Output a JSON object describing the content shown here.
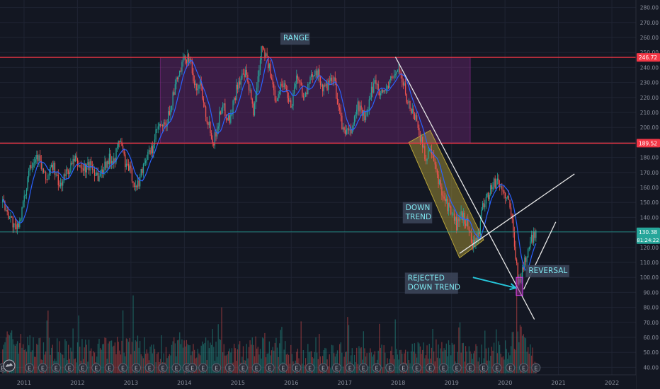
{
  "chart_data": {
    "type": "candlestick",
    "x_ticks": [
      "2011",
      "2012",
      "2013",
      "2014",
      "2015",
      "2016",
      "2017",
      "2018",
      "2019",
      "2020",
      "2021",
      "2022"
    ],
    "y_ticks": [
      40,
      50,
      60,
      70,
      80,
      90,
      100,
      110,
      120,
      130,
      140,
      150,
      160,
      170,
      180,
      190,
      200,
      210,
      220,
      230,
      240,
      250,
      260,
      270,
      280
    ],
    "y_tick_labels": [
      "40.00",
      "50.00",
      "60.00",
      "70.00",
      "80.00",
      "90.00",
      "100.00",
      "110.00",
      "120.00",
      "130.00",
      "140.00",
      "150.00",
      "160.00",
      "170.00",
      "180.00",
      "190.00",
      "200.00",
      "210.00",
      "220.00",
      "230.00",
      "240.00",
      "250.00",
      "260.00",
      "270.00",
      "280.00"
    ],
    "ylim": [
      35,
      285
    ],
    "xlim": [
      2010.55,
      2022.45
    ],
    "price_path": [
      [
        2010.6,
        150
      ],
      [
        2010.75,
        140
      ],
      [
        2010.85,
        130
      ],
      [
        2011.0,
        150
      ],
      [
        2011.1,
        175
      ],
      [
        2011.25,
        182
      ],
      [
        2011.4,
        165
      ],
      [
        2011.55,
        175
      ],
      [
        2011.65,
        160
      ],
      [
        2011.8,
        170
      ],
      [
        2011.95,
        178
      ],
      [
        2012.1,
        172
      ],
      [
        2012.25,
        175
      ],
      [
        2012.4,
        167
      ],
      [
        2012.55,
        178
      ],
      [
        2012.7,
        180
      ],
      [
        2012.8,
        193
      ],
      [
        2012.9,
        175
      ],
      [
        2013.0,
        170
      ],
      [
        2013.1,
        158
      ],
      [
        2013.25,
        178
      ],
      [
        2013.4,
        185
      ],
      [
        2013.5,
        200
      ],
      [
        2013.65,
        200
      ],
      [
        2013.85,
        230
      ],
      [
        2014.0,
        245
      ],
      [
        2014.1,
        248
      ],
      [
        2014.2,
        225
      ],
      [
        2014.3,
        230
      ],
      [
        2014.4,
        210
      ],
      [
        2014.55,
        190
      ],
      [
        2014.7,
        215
      ],
      [
        2014.85,
        205
      ],
      [
        2015.0,
        230
      ],
      [
        2015.15,
        235
      ],
      [
        2015.3,
        210
      ],
      [
        2015.45,
        257
      ],
      [
        2015.55,
        245
      ],
      [
        2015.7,
        220
      ],
      [
        2015.85,
        230
      ],
      [
        2016.0,
        215
      ],
      [
        2016.1,
        235
      ],
      [
        2016.25,
        220
      ],
      [
        2016.45,
        240
      ],
      [
        2016.6,
        225
      ],
      [
        2016.8,
        232
      ],
      [
        2016.95,
        200
      ],
      [
        2017.1,
        195
      ],
      [
        2017.25,
        215
      ],
      [
        2017.4,
        205
      ],
      [
        2017.55,
        232
      ],
      [
        2017.7,
        222
      ],
      [
        2017.85,
        230
      ],
      [
        2018.0,
        240
      ],
      [
        2018.1,
        228
      ],
      [
        2018.2,
        215
      ],
      [
        2018.35,
        205
      ],
      [
        2018.5,
        180
      ],
      [
        2018.6,
        185
      ],
      [
        2018.75,
        165
      ],
      [
        2018.9,
        150
      ],
      [
        2019.0,
        142
      ],
      [
        2019.1,
        135
      ],
      [
        2019.2,
        142
      ],
      [
        2019.3,
        135
      ],
      [
        2019.4,
        122
      ],
      [
        2019.5,
        128
      ],
      [
        2019.6,
        150
      ],
      [
        2019.75,
        160
      ],
      [
        2019.85,
        165
      ],
      [
        2019.95,
        158
      ],
      [
        2020.05,
        152
      ],
      [
        2020.15,
        135
      ],
      [
        2020.25,
        95
      ],
      [
        2020.35,
        108
      ],
      [
        2020.45,
        120
      ],
      [
        2020.55,
        130
      ],
      [
        2020.58,
        130.38
      ]
    ],
    "volume_path": [
      [
        2010.6,
        60
      ],
      [
        2011.0,
        55
      ],
      [
        2011.5,
        52
      ],
      [
        2012.0,
        50
      ],
      [
        2012.5,
        52
      ],
      [
        2013.0,
        56
      ],
      [
        2013.5,
        50
      ],
      [
        2014.0,
        54
      ],
      [
        2014.5,
        52
      ],
      [
        2015.0,
        50
      ],
      [
        2015.5,
        54
      ],
      [
        2016.0,
        50
      ],
      [
        2016.5,
        47
      ],
      [
        2017.0,
        48
      ],
      [
        2017.5,
        47
      ],
      [
        2018.0,
        48
      ],
      [
        2018.5,
        52
      ],
      [
        2019.0,
        50
      ],
      [
        2019.5,
        49
      ],
      [
        2020.0,
        50
      ],
      [
        2020.25,
        62
      ],
      [
        2020.58,
        48
      ]
    ],
    "volume_spikes": [
      [
        2013.05,
        88
      ],
      [
        2014.7,
        80
      ],
      [
        2012.85,
        78
      ],
      [
        2020.22,
        95
      ],
      [
        2017.95,
        72
      ],
      [
        2019.15,
        70
      ]
    ],
    "earnings_markers": [
      2010.6,
      2011.1,
      2011.35,
      2011.6,
      2011.85,
      2012.1,
      2012.35,
      2012.6,
      2012.85,
      2013.1,
      2013.35,
      2013.6,
      2013.85,
      2014.05,
      2014.15,
      2014.35,
      2014.6,
      2014.85,
      2015.1,
      2015.35,
      2015.6,
      2015.85,
      2016.1,
      2016.35,
      2016.6,
      2016.85,
      2017.1,
      2017.35,
      2017.6,
      2017.85,
      2018.1,
      2018.35,
      2018.6,
      2018.85,
      2019.1,
      2019.35,
      2019.6,
      2019.85,
      2020.1,
      2020.35,
      2020.58
    ],
    "earnings_label": "E",
    "horizontal_lines": [
      {
        "price": 246.72,
        "label": "246.72",
        "color": "#f23645"
      },
      {
        "price": 189.52,
        "label": "189.52",
        "color": "#f23645"
      }
    ],
    "current_price": {
      "price": 130.38,
      "label": "130.38",
      "countdown": "81:24:22",
      "color": "#26a69a"
    },
    "range_box": {
      "x0": 2013.55,
      "x1": 2019.35,
      "y0": 189.52,
      "y1": 246.72
    },
    "down_channel": [
      [
        2018.2,
        190
      ],
      [
        2018.6,
        198
      ],
      [
        2019.6,
        125
      ],
      [
        2019.15,
        113
      ]
    ],
    "trend_lines": [
      [
        [
          2017.95,
          247
        ],
        [
          2020.55,
          72
        ]
      ],
      [
        [
          2019.15,
          116
        ],
        [
          2021.3,
          169
        ]
      ],
      [
        [
          2020.35,
          92
        ],
        [
          2020.95,
          137
        ]
      ]
    ],
    "arrow": {
      "from": [
        2019.4,
        100
      ],
      "to": [
        2020.2,
        93
      ]
    },
    "reversal_marker": {
      "x0": 2020.21,
      "x1": 2020.33,
      "y0": 88,
      "y1": 100
    },
    "annotations": [
      {
        "text": "RANGE",
        "x": 2015.85,
        "y": 258
      },
      {
        "text": "DOWN\nTREND",
        "x": 2018.14,
        "y": 145
      },
      {
        "text": "REJECTED\nDOWN TREND",
        "x": 2018.18,
        "y": 98
      },
      {
        "text": "REVERSAL",
        "x": 2020.44,
        "y": 103
      }
    ],
    "colors": {
      "bg": "#131722",
      "grid": "#1f2433",
      "up": "#26a69a",
      "down": "#ef5350",
      "ma": "#2962ff",
      "range": "#8e2a8e",
      "channel": "#b8a43a",
      "line": "#f23645",
      "trend": "#e6e6e6",
      "arrow": "#26c6da",
      "label_bg": "#3b4458",
      "label_text": "#7fe7f0",
      "axis_text": "#8a8f9c"
    }
  }
}
